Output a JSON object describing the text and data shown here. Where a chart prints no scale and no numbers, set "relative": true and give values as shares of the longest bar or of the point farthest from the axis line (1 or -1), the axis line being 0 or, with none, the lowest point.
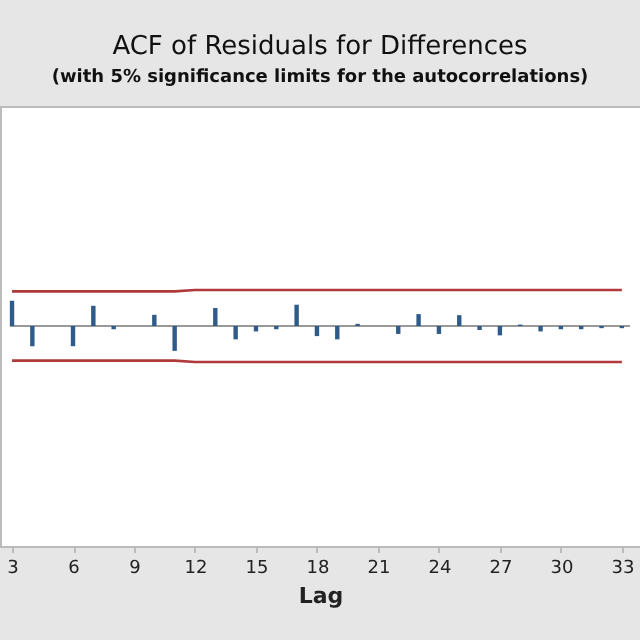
{
  "chart_data": {
    "type": "bar",
    "title": "ACF of Residuals for Differences",
    "subtitle": "(with 5% significance limits for the autocorrelations)",
    "xlabel": "Lag",
    "relative": true,
    "x": [
      3,
      4,
      5,
      6,
      7,
      8,
      9,
      10,
      11,
      12,
      13,
      14,
      15,
      16,
      17,
      18,
      19,
      20,
      21,
      22,
      23,
      24,
      25,
      26,
      27,
      28,
      29,
      30,
      31,
      32,
      33
    ],
    "xlim": [
      2.9,
      33.4
    ],
    "xticks": [
      3,
      6,
      9,
      12,
      15,
      18,
      21,
      24,
      27,
      30,
      33
    ],
    "grid": false,
    "ref_lines": [
      {
        "axis": "y",
        "value": 0,
        "color": "#999999"
      }
    ],
    "series": [
      {
        "color": "#2e5b8a",
        "values": [
          0.7,
          -0.56,
          0,
          -0.56,
          0.56,
          -0.09,
          0,
          0.31,
          -0.69,
          0,
          0.5,
          -0.37,
          -0.15,
          -0.09,
          0.59,
          -0.28,
          -0.37,
          0.06,
          0,
          -0.22,
          0.33,
          -0.22,
          0.3,
          -0.11,
          -0.26,
          0.04,
          -0.15,
          -0.09,
          -0.09,
          -0.06,
          -0.06
        ]
      },
      {
        "type": "line",
        "color": "#b03a3a",
        "values": [
          0.96,
          0.96,
          0.96,
          0.96,
          0.96,
          0.96,
          0.96,
          0.96,
          0.96,
          1,
          1,
          1,
          1,
          1,
          1,
          1,
          1,
          1,
          1,
          1,
          1,
          1,
          1,
          1,
          1,
          1,
          1,
          1,
          1,
          1,
          1
        ]
      },
      {
        "type": "line",
        "color": "#b03a3a",
        "values": [
          -0.96,
          -0.96,
          -0.96,
          -0.96,
          -0.96,
          -0.96,
          -0.96,
          -0.96,
          -0.96,
          -1,
          -1,
          -1,
          -1,
          -1,
          -1,
          -1,
          -1,
          -1,
          -1,
          -1,
          -1,
          -1,
          -1,
          -1,
          -1,
          -1,
          -1,
          -1,
          -1,
          -1,
          -1
        ]
      }
    ]
  }
}
